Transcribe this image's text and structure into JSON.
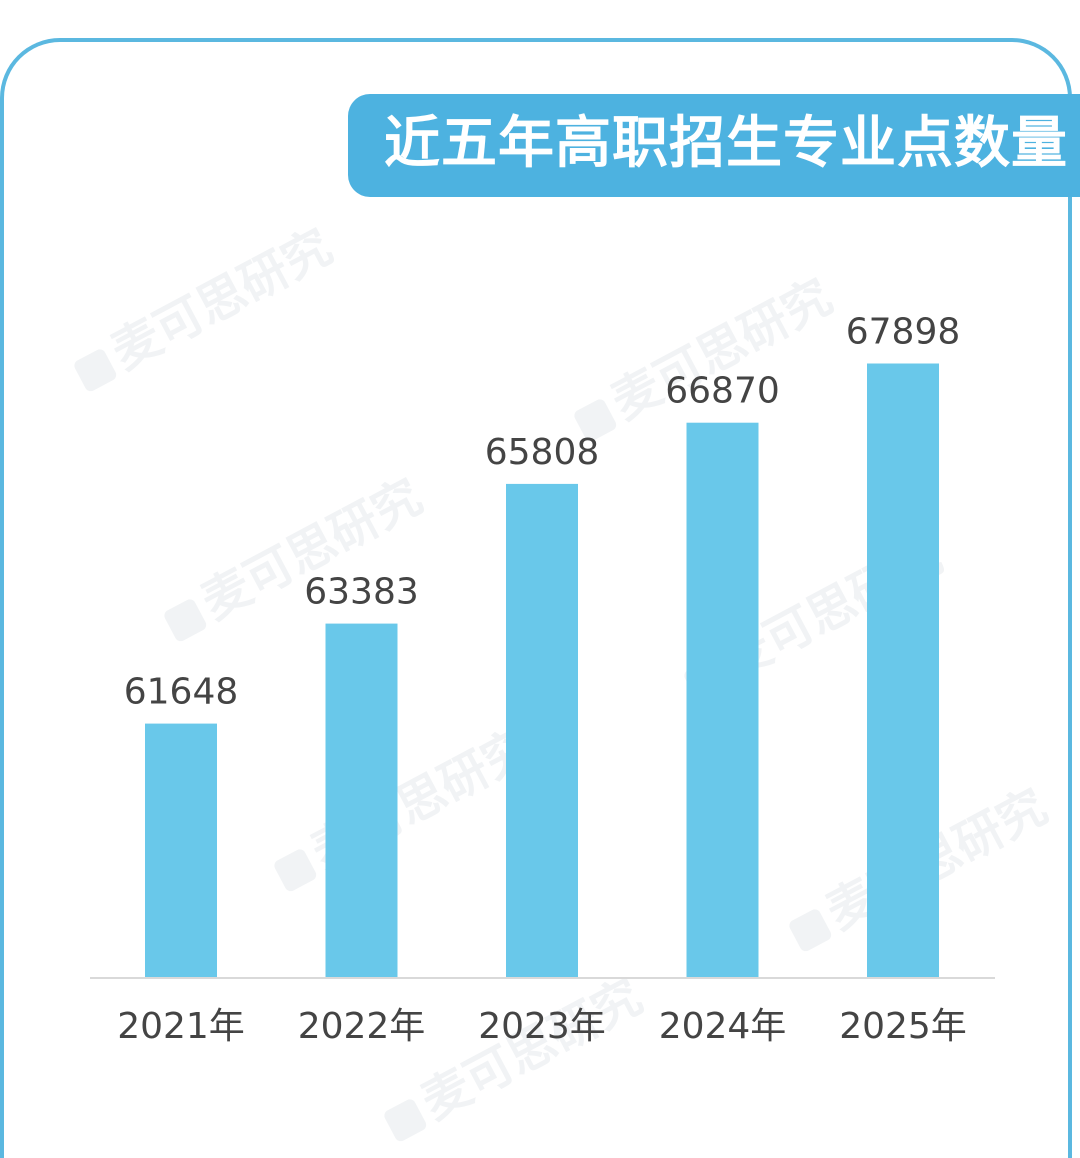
{
  "title": "近五年高职招生专业点数量",
  "watermark_text": "麦可思研究",
  "colors": {
    "bar": "#69c8ea",
    "banner": "#4db2e0",
    "border": "#5bb8e0",
    "axis": "#d9d9d9",
    "label": "#444444"
  },
  "chart_data": {
    "type": "bar",
    "categories": [
      "2021年",
      "2022年",
      "2023年",
      "2024年",
      "2025年"
    ],
    "values": [
      61648,
      63383,
      65808,
      66870,
      67898
    ],
    "title": "近五年高职招生专业点数量",
    "xlabel": "",
    "ylabel": "",
    "ylim": [
      57250,
      69000
    ],
    "grid": false,
    "data_labels": true
  }
}
